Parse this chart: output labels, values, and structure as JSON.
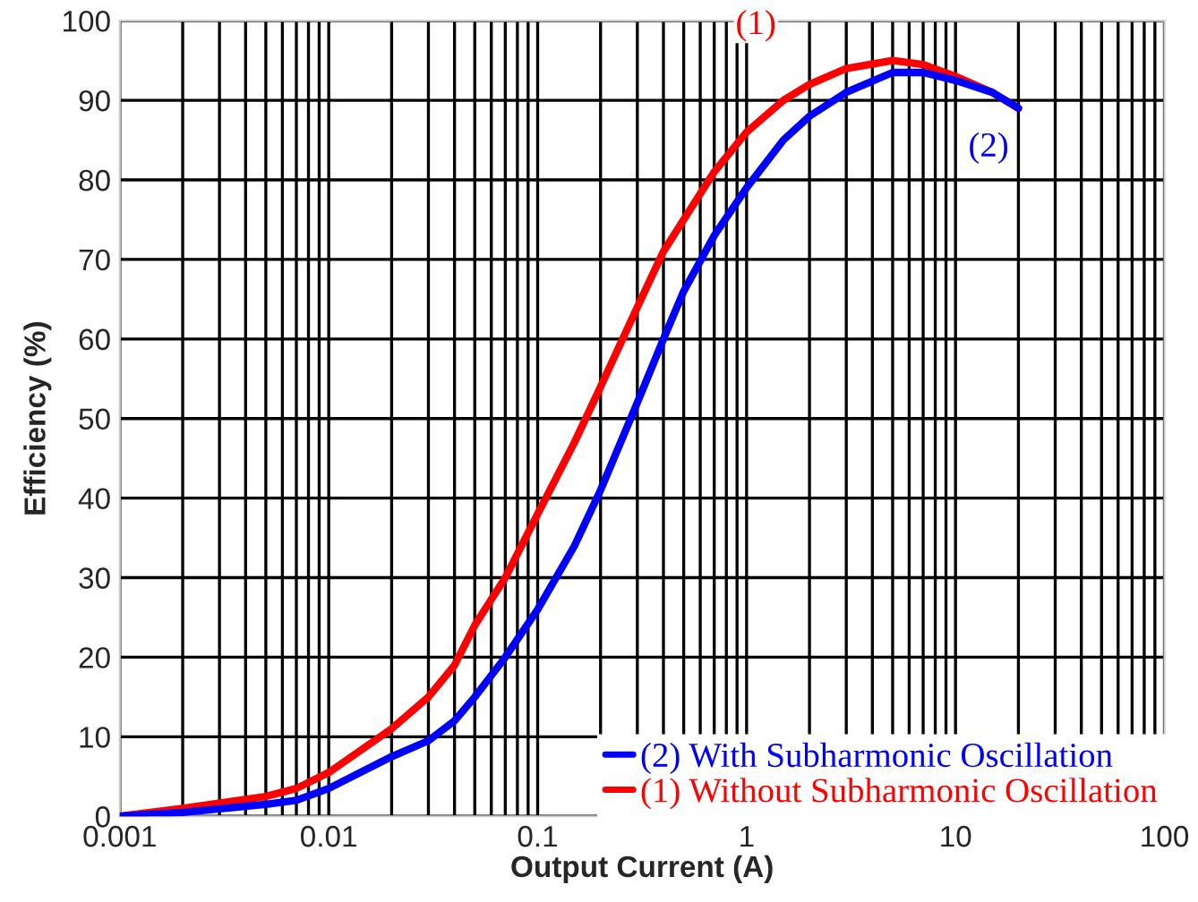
{
  "chart_data": {
    "type": "line",
    "xlabel": "Output Current (A)",
    "ylabel": "Efficiency (%)",
    "log": "x",
    "x": [
      0.001,
      0.002,
      0.005,
      0.007,
      0.01,
      0.02,
      0.03,
      0.04,
      0.05,
      0.07,
      0.1,
      0.15,
      0.2,
      0.3,
      0.4,
      0.5,
      0.7,
      1,
      1.5,
      2,
      3,
      5,
      7,
      10,
      15,
      20
    ],
    "series": [
      {
        "name": "(2) With Subharmonic Oscillation",
        "color": "#0000ff",
        "values": [
          0,
          0.5,
          1.5,
          2,
          3.5,
          7.5,
          9.5,
          12,
          15,
          20,
          26,
          34,
          41,
          52,
          60,
          66,
          73,
          79,
          85,
          88,
          91,
          93.5,
          93.5,
          92.5,
          91,
          89
        ]
      },
      {
        "name": "(1) Without Subharmonic Oscillation",
        "color": "#ff0000",
        "values": [
          0,
          1,
          2.5,
          3.5,
          5.5,
          11,
          15,
          19,
          24,
          30,
          38,
          47,
          54,
          64,
          71,
          75,
          81,
          86,
          90,
          92,
          94,
          95,
          94.5,
          93,
          91,
          89
        ]
      }
    ],
    "annotations": [
      "(2)",
      "(1)"
    ],
    "xlim": [
      0.001,
      100
    ],
    "xticks": [
      0.001,
      0.01,
      0.1,
      1,
      10,
      100
    ],
    "ylim": [
      0,
      100
    ],
    "yticks": [
      0,
      10,
      20,
      30,
      40,
      50,
      60,
      70,
      80,
      90,
      100
    ],
    "grid": true,
    "legend": "bottom right",
    "marker": "none",
    "line_style": "solid"
  }
}
